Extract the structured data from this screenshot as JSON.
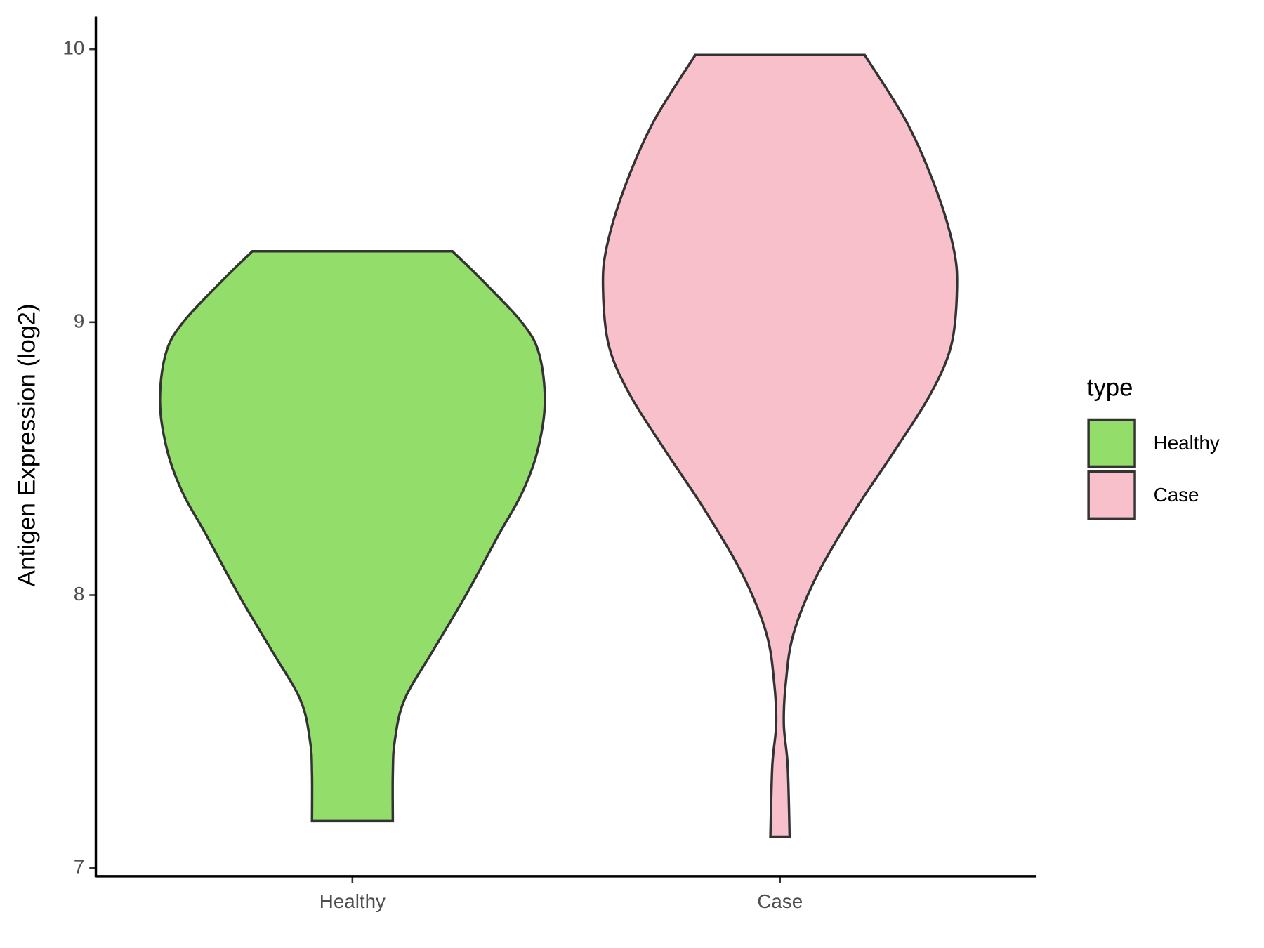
{
  "chart_data": {
    "type": "violin",
    "y_label": "Antigen Expression (log2)",
    "categories": [
      "Healthy",
      "Case"
    ],
    "legend_title": "type",
    "legend_position": "right",
    "ylim": [
      6.97,
      10.12
    ],
    "yticks": [
      7,
      8,
      9,
      10
    ],
    "series": [
      {
        "name": "Healthy",
        "color": "#93dd6a",
        "y": [
          9.26,
          9.157,
          9.0,
          8.885,
          8.704,
          8.523,
          8.372,
          8.221,
          8.0,
          7.798,
          7.616,
          7.465,
          7.344,
          7.172
        ],
        "density": [
          0.52,
          0.67,
          0.88,
          0.97,
          1.0,
          0.96,
          0.88,
          0.76,
          0.59,
          0.42,
          0.27,
          0.22,
          0.21,
          0.21
        ]
      },
      {
        "name": "Case",
        "color": "#f7c0cb",
        "y": [
          9.979,
          9.731,
          9.489,
          9.278,
          9.127,
          8.915,
          8.734,
          8.523,
          8.311,
          8.069,
          7.858,
          7.677,
          7.526,
          7.375,
          7.115
        ],
        "density": [
          0.44,
          0.66,
          0.81,
          0.9,
          0.92,
          0.89,
          0.78,
          0.59,
          0.39,
          0.19,
          0.07,
          0.03,
          0.02,
          0.04,
          0.05
        ]
      }
    ]
  }
}
